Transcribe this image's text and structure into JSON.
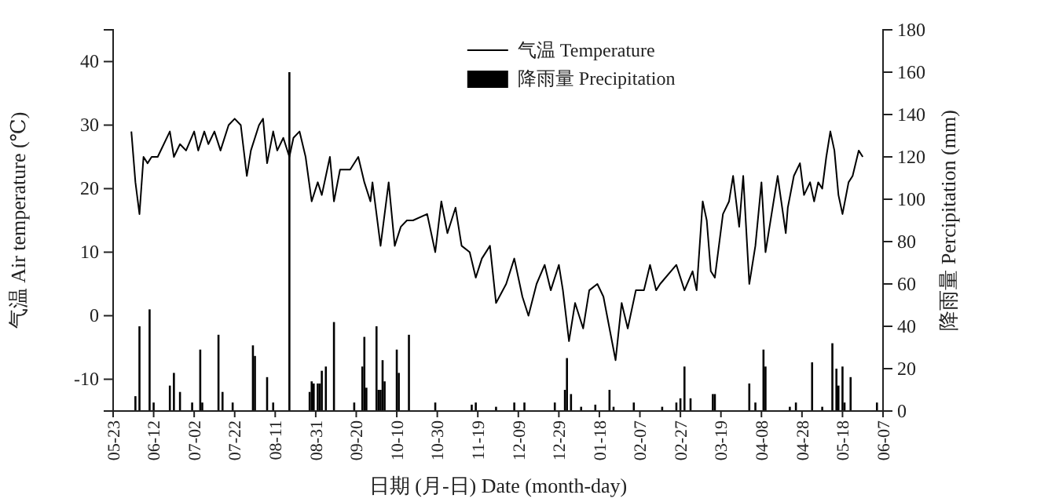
{
  "chart_data": {
    "type": "line",
    "xlabel": "日期 (月-日) Date (month-day)",
    "ylabel": "气温 Air temperature (℃)",
    "y2label": "降雨量 Percipitation (mm)",
    "legend": "top",
    "categories": [
      "05-23",
      null,
      null,
      null,
      null,
      null,
      null,
      null,
      null,
      null,
      null,
      null,
      null,
      null,
      null,
      null,
      null,
      null,
      null,
      null,
      "06-12",
      null,
      null,
      null,
      null,
      null,
      null,
      null,
      null,
      null,
      null,
      null,
      null,
      null,
      null,
      null,
      null,
      null,
      null,
      null,
      "07-02",
      null,
      null,
      null,
      null,
      null,
      null,
      null,
      null,
      null,
      null,
      null,
      null,
      null,
      null,
      null,
      null,
      null,
      null,
      null,
      "07-22",
      null,
      null,
      null,
      null,
      null,
      null,
      null,
      null,
      null,
      null,
      null,
      null,
      null,
      null,
      null,
      null,
      null,
      null,
      null,
      "08-11",
      null,
      null,
      null,
      null,
      null,
      null,
      null,
      null,
      null,
      null,
      null,
      null,
      null,
      null,
      null,
      null,
      null,
      null,
      null,
      "08-31",
      null,
      null,
      null,
      null,
      null,
      null,
      null,
      null,
      null,
      null,
      null,
      null,
      null,
      null,
      null,
      null,
      null,
      null,
      null,
      "09-20",
      null,
      null,
      null,
      null,
      null,
      null,
      null,
      null,
      null,
      null,
      null,
      null,
      null,
      null,
      null,
      null,
      null,
      null,
      null,
      "10-10",
      null,
      null,
      null,
      null,
      null,
      null,
      null,
      null,
      null,
      null,
      null,
      null,
      null,
      null,
      null,
      null,
      null,
      null,
      null,
      "10-30",
      null,
      null,
      null,
      null,
      null,
      null,
      null,
      null,
      null,
      null,
      null,
      null,
      null,
      null,
      null,
      null,
      null,
      null,
      null,
      "11-19",
      null,
      null,
      null,
      null,
      null,
      null,
      null,
      null,
      null,
      null,
      null,
      null,
      null,
      null,
      null,
      null,
      null,
      null,
      null,
      "12-09",
      null,
      null,
      null,
      null,
      null,
      null,
      null,
      null,
      null,
      null,
      null,
      null,
      null,
      null,
      null,
      null,
      null,
      null,
      null,
      "12-29",
      null,
      null,
      null,
      null,
      null,
      null,
      null,
      null,
      null,
      null,
      null,
      null,
      null,
      null,
      null,
      null,
      null,
      null,
      null,
      "01-18",
      null,
      null,
      null,
      null,
      null,
      null,
      null,
      null,
      null,
      null,
      null,
      null,
      null,
      null,
      null,
      null,
      null,
      null,
      null,
      "02-07",
      null,
      null,
      null,
      null,
      null,
      null,
      null,
      null,
      null,
      null,
      null,
      null,
      null,
      null,
      null,
      null,
      null,
      null,
      null,
      "02-27",
      null,
      null,
      null,
      null,
      null,
      null,
      null,
      null,
      null,
      null,
      null,
      null,
      null,
      null,
      null,
      null,
      null,
      null,
      null,
      "03-19",
      null,
      null,
      null,
      null,
      null,
      null,
      null,
      null,
      null,
      null,
      null,
      null,
      null,
      null,
      null,
      null,
      null,
      null,
      null,
      "04-08",
      null,
      null,
      null,
      null,
      null,
      null,
      null,
      null,
      null,
      null,
      null,
      null,
      null,
      null,
      null,
      null,
      null,
      null,
      null,
      "04-28",
      null,
      null,
      null,
      null,
      null,
      null,
      null,
      null,
      null,
      null,
      null,
      null,
      null,
      null,
      null,
      null,
      null,
      null,
      null,
      "05-18",
      null,
      null,
      null,
      null,
      null,
      null,
      null,
      null,
      null,
      null,
      null,
      null,
      null,
      null,
      null,
      null,
      null,
      null,
      null,
      "06-07"
    ],
    "ylim": [
      -15,
      45
    ],
    "yticks": [
      -10,
      0,
      10,
      20,
      30,
      40
    ],
    "y2lim": [
      0,
      180
    ],
    "y2ticks": [
      0,
      20,
      40,
      60,
      80,
      100,
      120,
      140,
      160,
      180
    ],
    "series": [
      {
        "name": "气温 Temperature",
        "color": "#000000",
        "values": [
          null,
          null,
          null,
          null,
          null,
          null,
          null,
          null,
          null,
          29,
          null,
          21,
          null,
          16,
          null,
          25,
          null,
          24,
          null,
          25,
          null,
          null,
          25,
          null,
          null,
          null,
          null,
          null,
          29,
          null,
          25,
          null,
          null,
          27,
          null,
          null,
          26,
          null,
          null,
          null,
          29,
          null,
          26,
          null,
          null,
          29,
          null,
          27,
          null,
          null,
          29,
          null,
          null,
          26,
          null,
          null,
          null,
          30,
          null,
          null,
          31,
          null,
          null,
          30,
          null,
          null,
          22,
          null,
          26,
          null,
          null,
          null,
          30,
          null,
          31,
          null,
          24,
          null,
          null,
          29,
          null,
          26,
          null,
          null,
          28,
          null,
          null,
          25,
          null,
          28,
          null,
          null,
          29,
          null,
          null,
          25,
          null,
          null,
          18,
          null,
          null,
          21,
          null,
          19,
          null,
          null,
          null,
          25,
          null,
          18,
          null,
          null,
          23,
          null,
          null,
          null,
          null,
          23,
          null,
          null,
          null,
          25,
          null,
          null,
          21,
          null,
          null,
          18,
          21,
          null,
          null,
          null,
          11,
          null,
          null,
          null,
          21,
          null,
          null,
          11,
          null,
          null,
          14,
          null,
          null,
          15,
          null,
          null,
          15,
          null,
          null,
          null,
          null,
          null,
          null,
          16,
          null,
          null,
          null,
          10,
          null,
          null,
          18,
          null,
          null,
          13,
          null,
          null,
          null,
          17,
          null,
          null,
          11,
          null,
          null,
          null,
          10,
          null,
          null,
          6,
          null,
          null,
          9,
          null,
          null,
          null,
          11,
          null,
          null,
          2,
          null,
          null,
          null,
          null,
          5,
          null,
          null,
          null,
          9,
          null,
          null,
          null,
          3,
          null,
          null,
          0,
          null,
          null,
          null,
          5,
          null,
          null,
          null,
          8,
          null,
          null,
          4,
          null,
          null,
          null,
          8,
          null,
          4,
          null,
          null,
          -4,
          null,
          null,
          2,
          null,
          null,
          null,
          -2,
          null,
          null,
          4,
          null,
          null,
          null,
          5,
          null,
          null,
          3,
          null,
          null,
          -2,
          null,
          null,
          -7,
          null,
          null,
          2,
          null,
          null,
          -2,
          null,
          null,
          null,
          4,
          null,
          null,
          null,
          4,
          null,
          null,
          8,
          null,
          null,
          4,
          null,
          5,
          null,
          null,
          null,
          null,
          null,
          null,
          null,
          8,
          null,
          null,
          null,
          4,
          null,
          null,
          null,
          7,
          null,
          4,
          null,
          null,
          18,
          null,
          15,
          null,
          7,
          null,
          6,
          null,
          null,
          null,
          16,
          null,
          null,
          18,
          null,
          22,
          null,
          null,
          14,
          null,
          22,
          null,
          null,
          5,
          null,
          null,
          11,
          null,
          null,
          21,
          null,
          10,
          null,
          null,
          null,
          18,
          null,
          22,
          null,
          null,
          null,
          13,
          17,
          null,
          null,
          22,
          null,
          null,
          24,
          null,
          19,
          null,
          null,
          21,
          null,
          18,
          null,
          21,
          null,
          20,
          null,
          25,
          null,
          29,
          null,
          26,
          null,
          19,
          null,
          16,
          null,
          null,
          21,
          null,
          22,
          null,
          null,
          26,
          null,
          25,
          null,
          null,
          null,
          null,
          null,
          null,
          null,
          null,
          null,
          null
        ]
      },
      {
        "name": "降雨量 Precipitation",
        "type": "bar",
        "axis": "y2",
        "color": "#000000",
        "values": [
          null,
          null,
          null,
          null,
          null,
          null,
          null,
          null,
          null,
          null,
          null,
          7,
          null,
          40,
          null,
          null,
          null,
          null,
          48,
          null,
          4,
          null,
          null,
          null,
          null,
          null,
          null,
          null,
          12,
          null,
          18,
          null,
          null,
          9,
          null,
          null,
          null,
          null,
          null,
          4,
          null,
          null,
          null,
          29,
          4,
          null,
          null,
          null,
          null,
          null,
          null,
          null,
          36,
          null,
          9,
          null,
          null,
          null,
          null,
          4,
          null,
          null,
          null,
          null,
          null,
          null,
          null,
          null,
          null,
          31,
          26,
          null,
          null,
          null,
          null,
          null,
          16,
          null,
          null,
          4,
          null,
          null,
          null,
          null,
          null,
          null,
          null,
          160,
          null,
          null,
          null,
          null,
          null,
          null,
          null,
          null,
          null,
          9,
          14,
          13,
          null,
          13,
          13,
          19,
          null,
          21,
          null,
          null,
          null,
          42,
          null,
          null,
          null,
          null,
          null,
          null,
          null,
          null,
          null,
          4,
          null,
          null,
          null,
          21,
          35,
          11,
          null,
          null,
          null,
          null,
          40,
          10,
          10,
          24,
          14,
          null,
          null,
          null,
          null,
          null,
          29,
          18,
          null,
          null,
          null,
          null,
          36,
          null,
          null,
          null,
          null,
          null,
          null,
          null,
          null,
          null,
          null,
          null,
          null,
          4,
          null,
          null,
          null,
          null,
          null,
          null,
          null,
          null,
          null,
          null,
          null,
          null,
          null,
          null,
          null,
          null,
          null,
          3,
          null,
          4,
          null,
          null,
          null,
          null,
          null,
          null,
          null,
          null,
          null,
          2,
          null,
          null,
          null,
          null,
          null,
          null,
          null,
          null,
          4,
          null,
          null,
          null,
          null,
          4,
          null,
          null,
          null,
          null,
          null,
          null,
          null,
          null,
          null,
          null,
          null,
          null,
          null,
          null,
          4,
          null,
          null,
          null,
          null,
          10,
          25,
          null,
          8,
          null,
          null,
          null,
          null,
          2,
          null,
          null,
          null,
          null,
          null,
          null,
          3,
          null,
          null,
          null,
          null,
          null,
          null,
          10,
          null,
          2,
          null,
          null,
          null,
          null,
          null,
          null,
          null,
          null,
          null,
          4,
          null,
          null,
          null,
          null,
          null,
          null,
          null,
          null,
          null,
          null,
          null,
          null,
          null,
          2,
          null,
          null,
          null,
          null,
          null,
          null,
          4,
          null,
          6,
          null,
          21,
          null,
          null,
          6,
          null,
          null,
          null,
          null,
          null,
          null,
          null,
          null,
          null,
          null,
          8,
          8,
          null,
          null,
          null,
          null,
          null,
          null,
          null,
          null,
          null,
          null,
          null,
          null,
          null,
          null,
          null,
          null,
          13,
          null,
          null,
          4,
          null,
          null,
          null,
          29,
          21,
          null,
          null,
          null,
          null,
          null,
          null,
          null,
          null,
          null,
          null,
          null,
          2,
          null,
          null,
          4,
          null,
          null,
          null,
          null,
          null,
          null,
          null,
          23,
          null,
          null,
          null,
          null,
          2,
          null,
          null,
          null,
          null,
          32,
          null,
          20,
          12,
          null,
          21,
          4,
          null,
          null,
          16,
          null,
          null,
          null,
          null,
          null,
          null,
          null,
          null,
          null,
          null,
          null,
          null,
          4,
          null,
          null,
          null
        ]
      }
    ]
  }
}
